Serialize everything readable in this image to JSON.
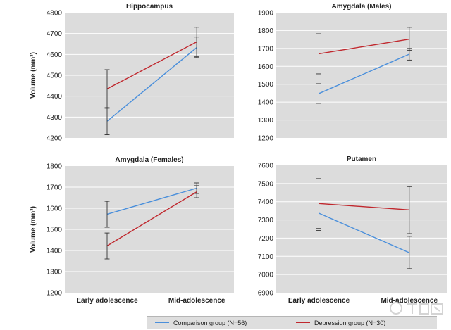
{
  "colors": {
    "comparison": "#4a8fdb",
    "depression": "#c0272d",
    "panel_bg": "#dcdcdc",
    "grid": "#ffffff",
    "error_bar": "#333333"
  },
  "ylabel": "Volume (mm³)",
  "categories": [
    "Early adolescence",
    "Mid-adolescence"
  ],
  "legend": {
    "comparison": "Comparison group (N=56)",
    "depression": "Depression group (N=30)"
  },
  "chart_data": [
    {
      "type": "line",
      "title": "Hippocampus",
      "ylim": [
        4200,
        4800
      ],
      "yticks": [
        4200,
        4300,
        4400,
        4500,
        4600,
        4700,
        4800
      ],
      "series": [
        {
          "name": "Comparison group (N=56)",
          "values": [
            4280,
            4633
          ],
          "err_low": [
            4215,
            4585
          ],
          "err_high": [
            4345,
            4683
          ]
        },
        {
          "name": "Depression group (N=30)",
          "values": [
            4435,
            4660
          ],
          "err_low": [
            4342,
            4590
          ],
          "err_high": [
            4527,
            4730
          ]
        }
      ]
    },
    {
      "type": "line",
      "title": "Amygdala (Males)",
      "ylim": [
        1200,
        1900
      ],
      "yticks": [
        1200,
        1300,
        1400,
        1500,
        1600,
        1700,
        1800,
        1900
      ],
      "series": [
        {
          "name": "Comparison group (N=56)",
          "values": [
            1448,
            1668
          ],
          "err_low": [
            1393,
            1635
          ],
          "err_high": [
            1503,
            1700
          ]
        },
        {
          "name": "Depression group (N=30)",
          "values": [
            1670,
            1752
          ],
          "err_low": [
            1558,
            1690
          ],
          "err_high": [
            1782,
            1818
          ]
        }
      ]
    },
    {
      "type": "line",
      "title": "Amygdala (Females)",
      "ylim": [
        1200,
        1800
      ],
      "yticks": [
        1200,
        1300,
        1400,
        1500,
        1600,
        1700,
        1800
      ],
      "series": [
        {
          "name": "Comparison group (N=56)",
          "values": [
            1572,
            1695
          ],
          "err_low": [
            1510,
            1670
          ],
          "err_high": [
            1633,
            1720
          ]
        },
        {
          "name": "Depression group (N=30)",
          "values": [
            1422,
            1678
          ],
          "err_low": [
            1360,
            1650
          ],
          "err_high": [
            1483,
            1707
          ]
        }
      ]
    },
    {
      "type": "line",
      "title": "Putamen",
      "ylim": [
        6900,
        7600
      ],
      "yticks": [
        6900,
        7000,
        7100,
        7200,
        7300,
        7400,
        7500,
        7600
      ],
      "series": [
        {
          "name": "Comparison group (N=56)",
          "values": [
            7337,
            7120
          ],
          "err_low": [
            7242,
            7032
          ],
          "err_high": [
            7432,
            7210
          ]
        },
        {
          "name": "Depression group (N=30)",
          "values": [
            7390,
            7355
          ],
          "err_low": [
            7253,
            7225
          ],
          "err_high": [
            7527,
            7483
          ]
        }
      ]
    }
  ]
}
